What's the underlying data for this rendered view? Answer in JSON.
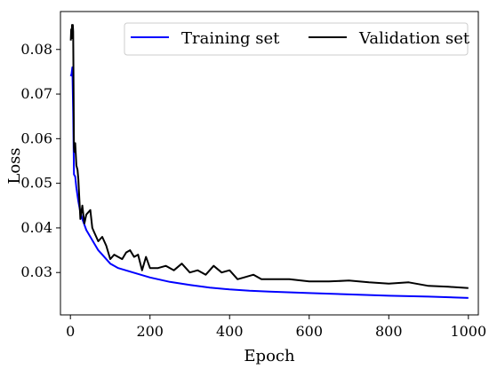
{
  "chart_data": {
    "type": "line",
    "xlabel": "Epoch",
    "ylabel": "Loss",
    "xlim": [
      -25,
      1025
    ],
    "ylim": [
      0.0205,
      0.0885
    ],
    "xticks": [
      0,
      200,
      400,
      600,
      800,
      1000
    ],
    "yticks": [
      0.03,
      0.04,
      0.05,
      0.06,
      0.07,
      0.08
    ],
    "legend_placement": "top-right",
    "grid": false,
    "series": [
      {
        "name": "Training set",
        "color": "#0000ff",
        "x": [
          1,
          3,
          5,
          7,
          9,
          12,
          15,
          20,
          25,
          30,
          40,
          50,
          60,
          70,
          80,
          100,
          120,
          150,
          200,
          250,
          300,
          350,
          400,
          450,
          500,
          600,
          700,
          800,
          900,
          1000
        ],
        "y": [
          0.074,
          0.0745,
          0.076,
          0.066,
          0.052,
          0.0515,
          0.049,
          0.046,
          0.0435,
          0.042,
          0.0395,
          0.038,
          0.0365,
          0.035,
          0.034,
          0.032,
          0.031,
          0.0302,
          0.0289,
          0.0279,
          0.0272,
          0.0266,
          0.0262,
          0.0259,
          0.0257,
          0.0254,
          0.0251,
          0.0248,
          0.0246,
          0.0243
        ]
      },
      {
        "name": "Validation set",
        "color": "#000000",
        "x": [
          1,
          2,
          3,
          4,
          5,
          6,
          7,
          8,
          9,
          10,
          12,
          15,
          18,
          20,
          25,
          30,
          35,
          40,
          50,
          55,
          60,
          70,
          80,
          90,
          100,
          110,
          120,
          130,
          140,
          150,
          160,
          170,
          180,
          190,
          200,
          220,
          240,
          260,
          280,
          300,
          320,
          340,
          360,
          380,
          400,
          420,
          440,
          460,
          480,
          500,
          550,
          600,
          650,
          700,
          750,
          800,
          850,
          900,
          950,
          1000
        ],
        "y": [
          0.082,
          0.0845,
          0.0825,
          0.0855,
          0.083,
          0.0855,
          0.084,
          0.07,
          0.058,
          0.057,
          0.059,
          0.054,
          0.053,
          0.051,
          0.042,
          0.045,
          0.041,
          0.043,
          0.044,
          0.04,
          0.039,
          0.037,
          0.038,
          0.036,
          0.033,
          0.034,
          0.0335,
          0.033,
          0.0345,
          0.035,
          0.0335,
          0.034,
          0.0305,
          0.0335,
          0.031,
          0.031,
          0.0315,
          0.0305,
          0.032,
          0.03,
          0.0305,
          0.0295,
          0.0315,
          0.03,
          0.0305,
          0.0285,
          0.029,
          0.0295,
          0.0285,
          0.0285,
          0.0285,
          0.028,
          0.028,
          0.0282,
          0.0278,
          0.0275,
          0.0278,
          0.027,
          0.0268,
          0.0265
        ]
      }
    ]
  }
}
